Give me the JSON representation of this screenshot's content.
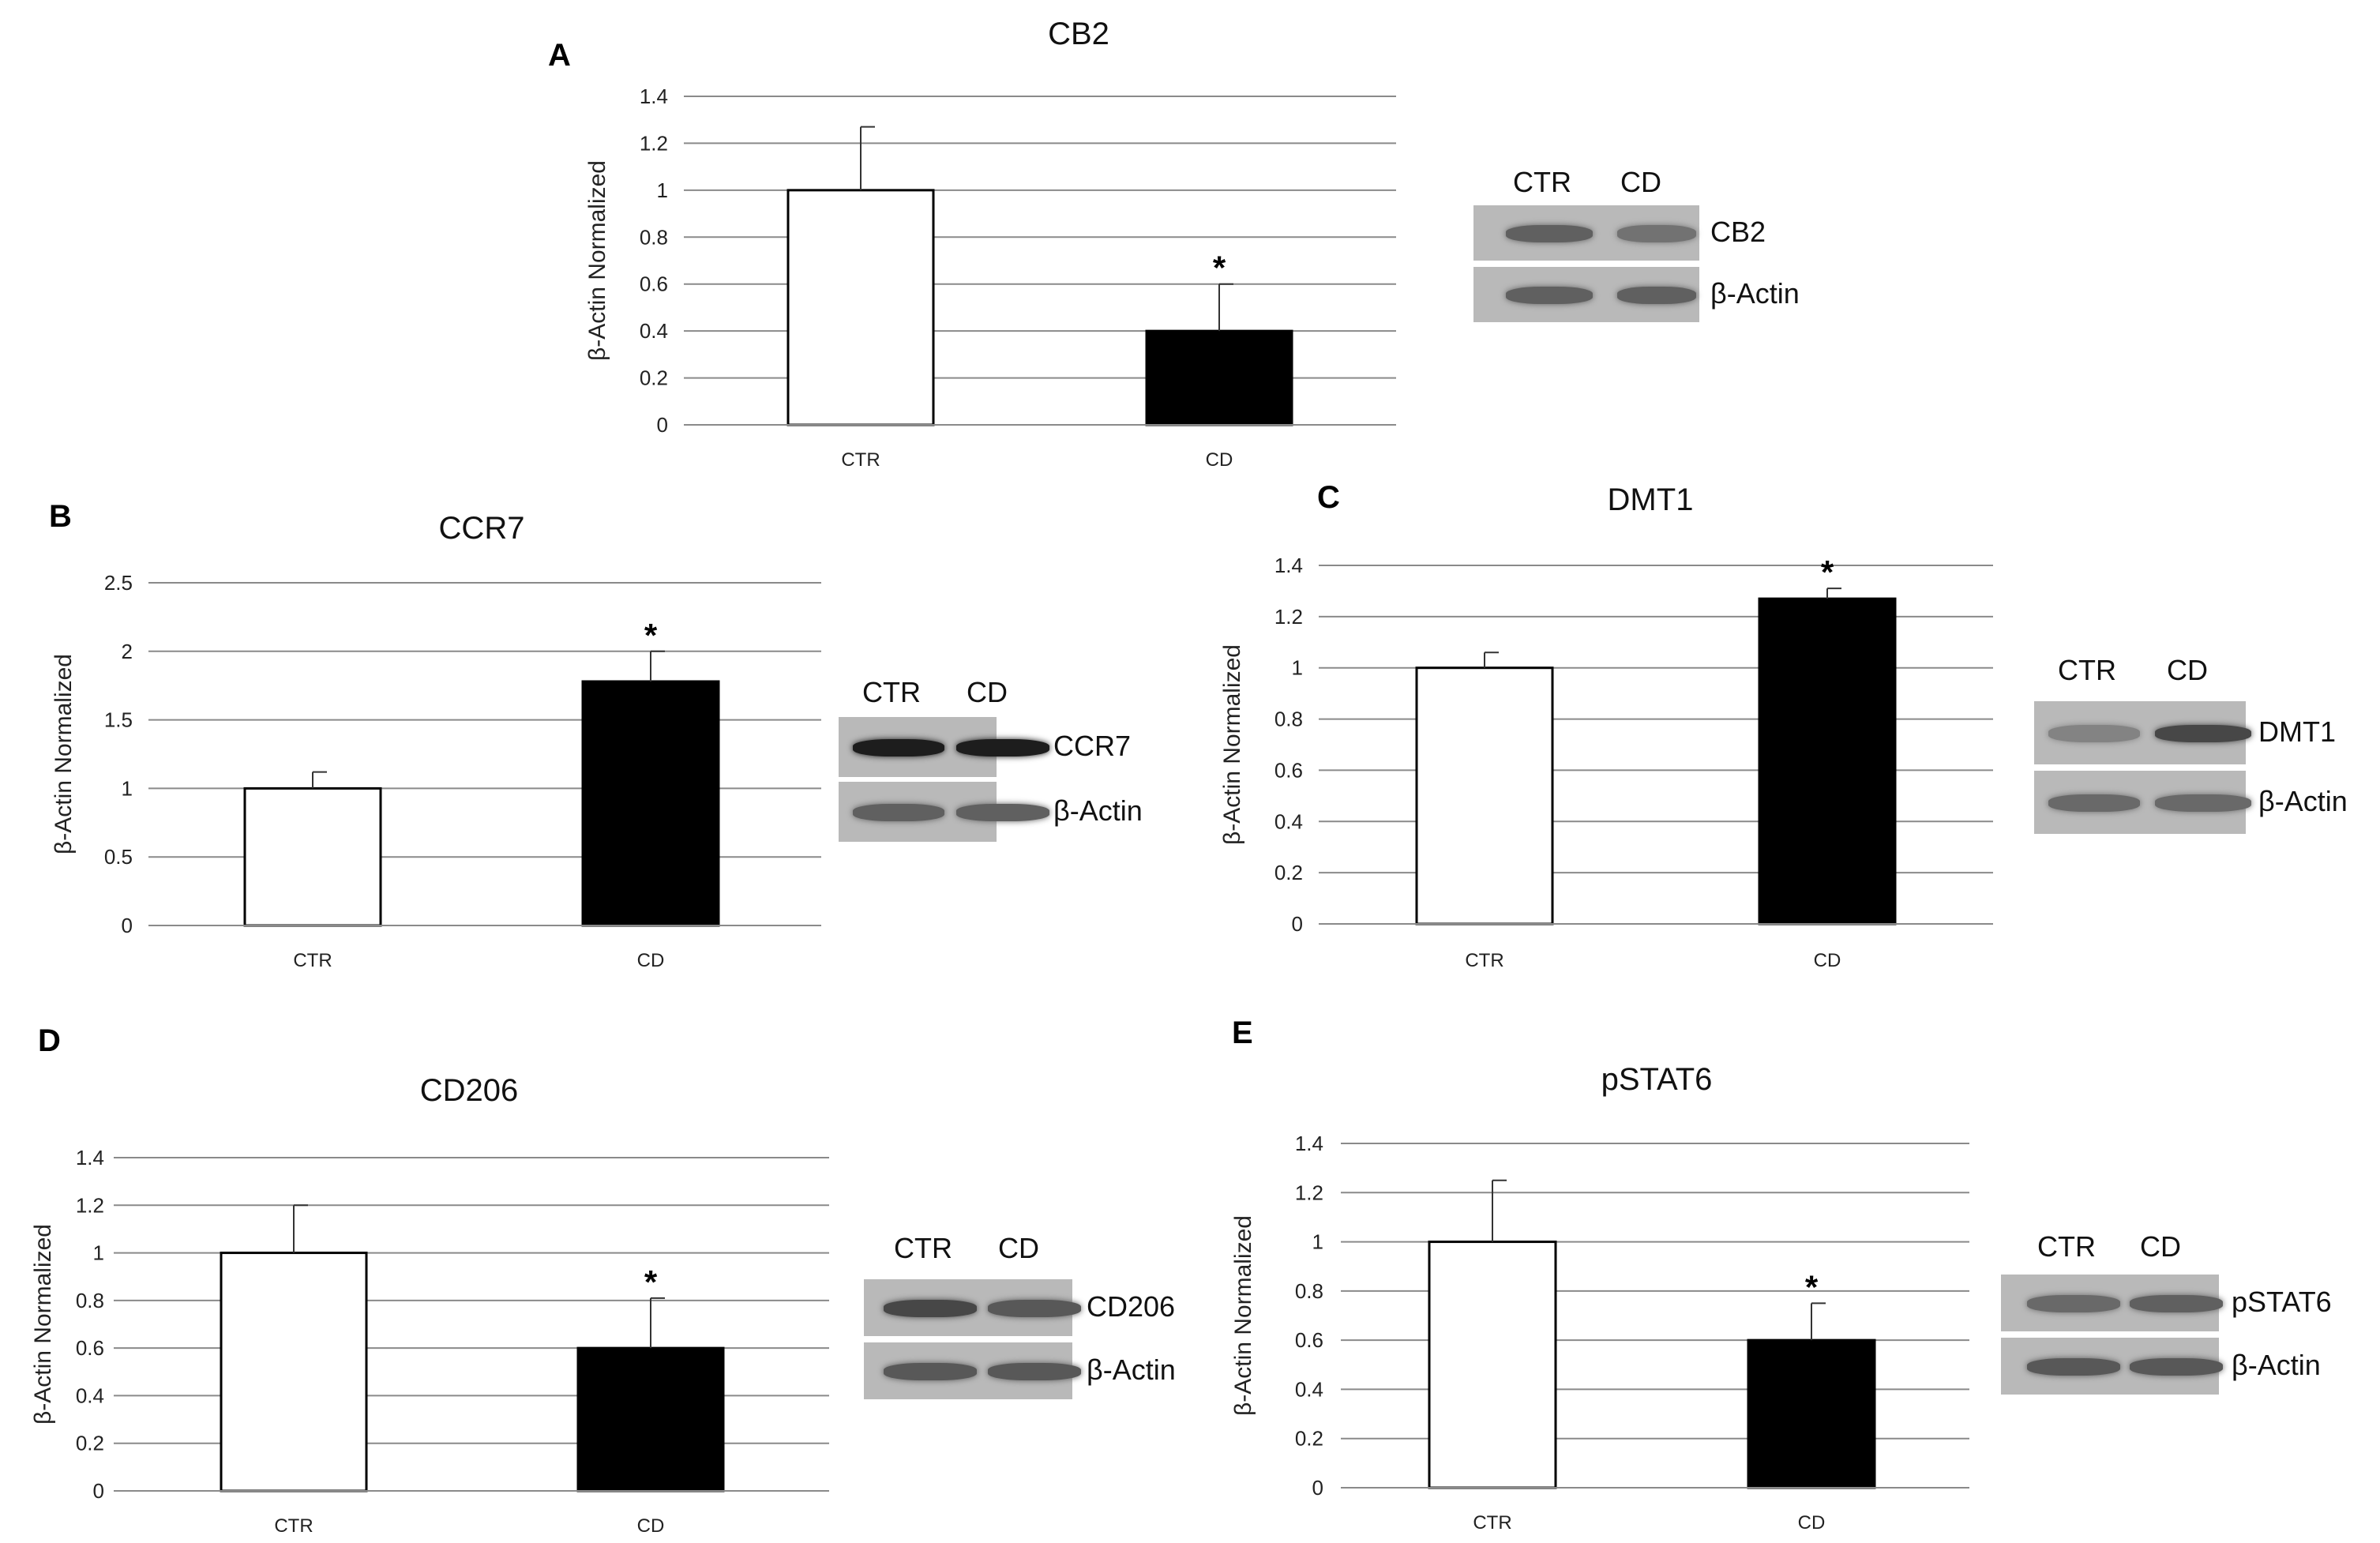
{
  "chart_data": [
    {
      "panel": "A",
      "type": "bar",
      "title": "CB2",
      "ylabel": "β-Actin Normalized",
      "xlabel": "",
      "categories": [
        "CTR",
        "CD"
      ],
      "values": [
        1.0,
        0.4
      ],
      "errors": [
        0.27,
        0.2
      ],
      "significance": [
        "",
        "*"
      ],
      "yticks": [
        "0",
        "0.2",
        "0.4",
        "0.6",
        "0.8",
        "1",
        "1.2",
        "1.4"
      ],
      "ylim": [
        0,
        1.4
      ],
      "grid": true,
      "bar_colors": [
        "#ffffff",
        "#000000"
      ],
      "blot": {
        "lanes": [
          "CTR",
          "CD"
        ],
        "rows": [
          "CB2",
          "β-Actin"
        ]
      }
    },
    {
      "panel": "B",
      "type": "bar",
      "title": "CCR7",
      "ylabel": "β-Actin Normalized",
      "xlabel": "",
      "categories": [
        "CTR",
        "CD"
      ],
      "values": [
        1.0,
        1.78
      ],
      "errors": [
        0.12,
        0.22
      ],
      "significance": [
        "",
        "*"
      ],
      "yticks": [
        "0",
        "0.5",
        "1",
        "1.5",
        "2",
        "2.5"
      ],
      "ylim": [
        0,
        2.5
      ],
      "grid": true,
      "bar_colors": [
        "#ffffff",
        "#000000"
      ],
      "blot": {
        "lanes": [
          "CTR",
          "CD"
        ],
        "rows": [
          "CCR7",
          "β-Actin"
        ]
      }
    },
    {
      "panel": "C",
      "type": "bar",
      "title": "DMT1",
      "ylabel": "β-Actin Normalized",
      "xlabel": "",
      "categories": [
        "CTR",
        "CD"
      ],
      "values": [
        1.0,
        1.27
      ],
      "errors": [
        0.06,
        0.04
      ],
      "significance": [
        "",
        "*"
      ],
      "yticks": [
        "0",
        "0.2",
        "0.4",
        "0.6",
        "0.8",
        "1",
        "1.2",
        "1.4"
      ],
      "ylim": [
        0,
        1.4
      ],
      "grid": true,
      "bar_colors": [
        "#ffffff",
        "#000000"
      ],
      "blot": {
        "lanes": [
          "CTR",
          "CD"
        ],
        "rows": [
          "DMT1",
          "β-Actin"
        ]
      }
    },
    {
      "panel": "D",
      "type": "bar",
      "title": "CD206",
      "ylabel": "β-Actin Normalized",
      "xlabel": "",
      "categories": [
        "CTR",
        "CD"
      ],
      "values": [
        1.0,
        0.6
      ],
      "errors": [
        0.2,
        0.21
      ],
      "significance": [
        "",
        "*"
      ],
      "yticks": [
        "0",
        "0.2",
        "0.4",
        "0.6",
        "0.8",
        "1",
        "1.2",
        "1.4"
      ],
      "ylim": [
        0,
        1.4
      ],
      "grid": true,
      "bar_colors": [
        "#ffffff",
        "#000000"
      ],
      "blot": {
        "lanes": [
          "CTR",
          "CD"
        ],
        "rows": [
          "CD206",
          "β-Actin"
        ]
      }
    },
    {
      "panel": "E",
      "type": "bar",
      "title": "pSTAT6",
      "ylabel": "β-Actin Normalized",
      "xlabel": "",
      "categories": [
        "CTR",
        "CD"
      ],
      "values": [
        1.0,
        0.6
      ],
      "errors": [
        0.25,
        0.15
      ],
      "significance": [
        "",
        "*"
      ],
      "yticks": [
        "0",
        "0.2",
        "0.4",
        "0.6",
        "0.8",
        "1",
        "1.2",
        "1.4"
      ],
      "ylim": [
        0,
        1.4
      ],
      "grid": true,
      "bar_colors": [
        "#ffffff",
        "#000000"
      ],
      "blot": {
        "lanes": [
          "CTR",
          "CD"
        ],
        "rows": [
          "pSTAT6",
          "β-Actin"
        ]
      }
    }
  ]
}
